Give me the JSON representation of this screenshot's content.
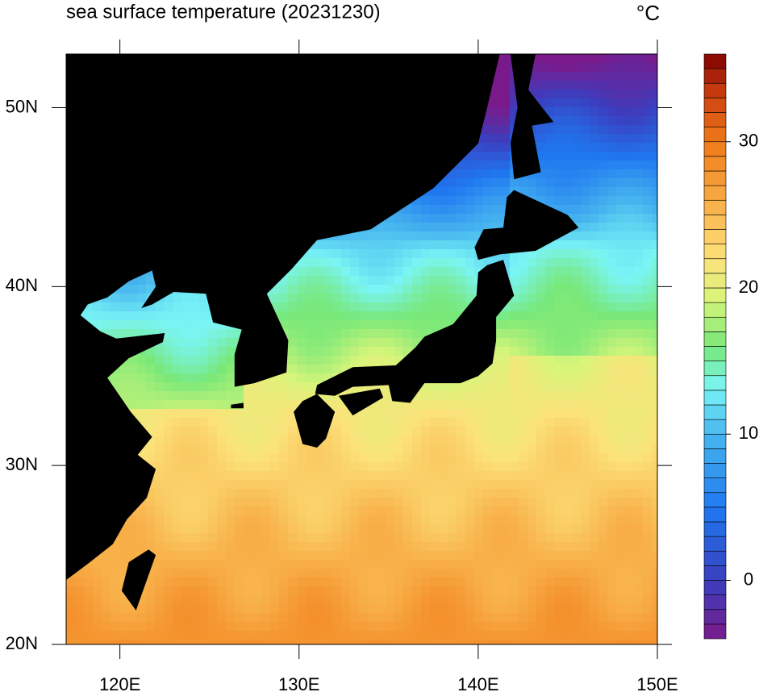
{
  "title": "sea surface temperature (20231230)",
  "unit": "°C",
  "map": {
    "xlim": [
      117,
      150
    ],
    "ylim": [
      20,
      53
    ],
    "xticks": [
      {
        "value": 120,
        "label": "120E"
      },
      {
        "value": 130,
        "label": "130E"
      },
      {
        "value": 140,
        "label": "140E"
      },
      {
        "value": 150,
        "label": "150E"
      }
    ],
    "yticks": [
      {
        "value": 20,
        "label": "20N"
      },
      {
        "value": 30,
        "label": "30N"
      },
      {
        "value": 40,
        "label": "40N"
      },
      {
        "value": 50,
        "label": "50N"
      }
    ]
  },
  "colorbar": {
    "lim": [
      -4,
      36
    ],
    "step": 1,
    "ticks": [
      0,
      10,
      20,
      30
    ]
  }
}
